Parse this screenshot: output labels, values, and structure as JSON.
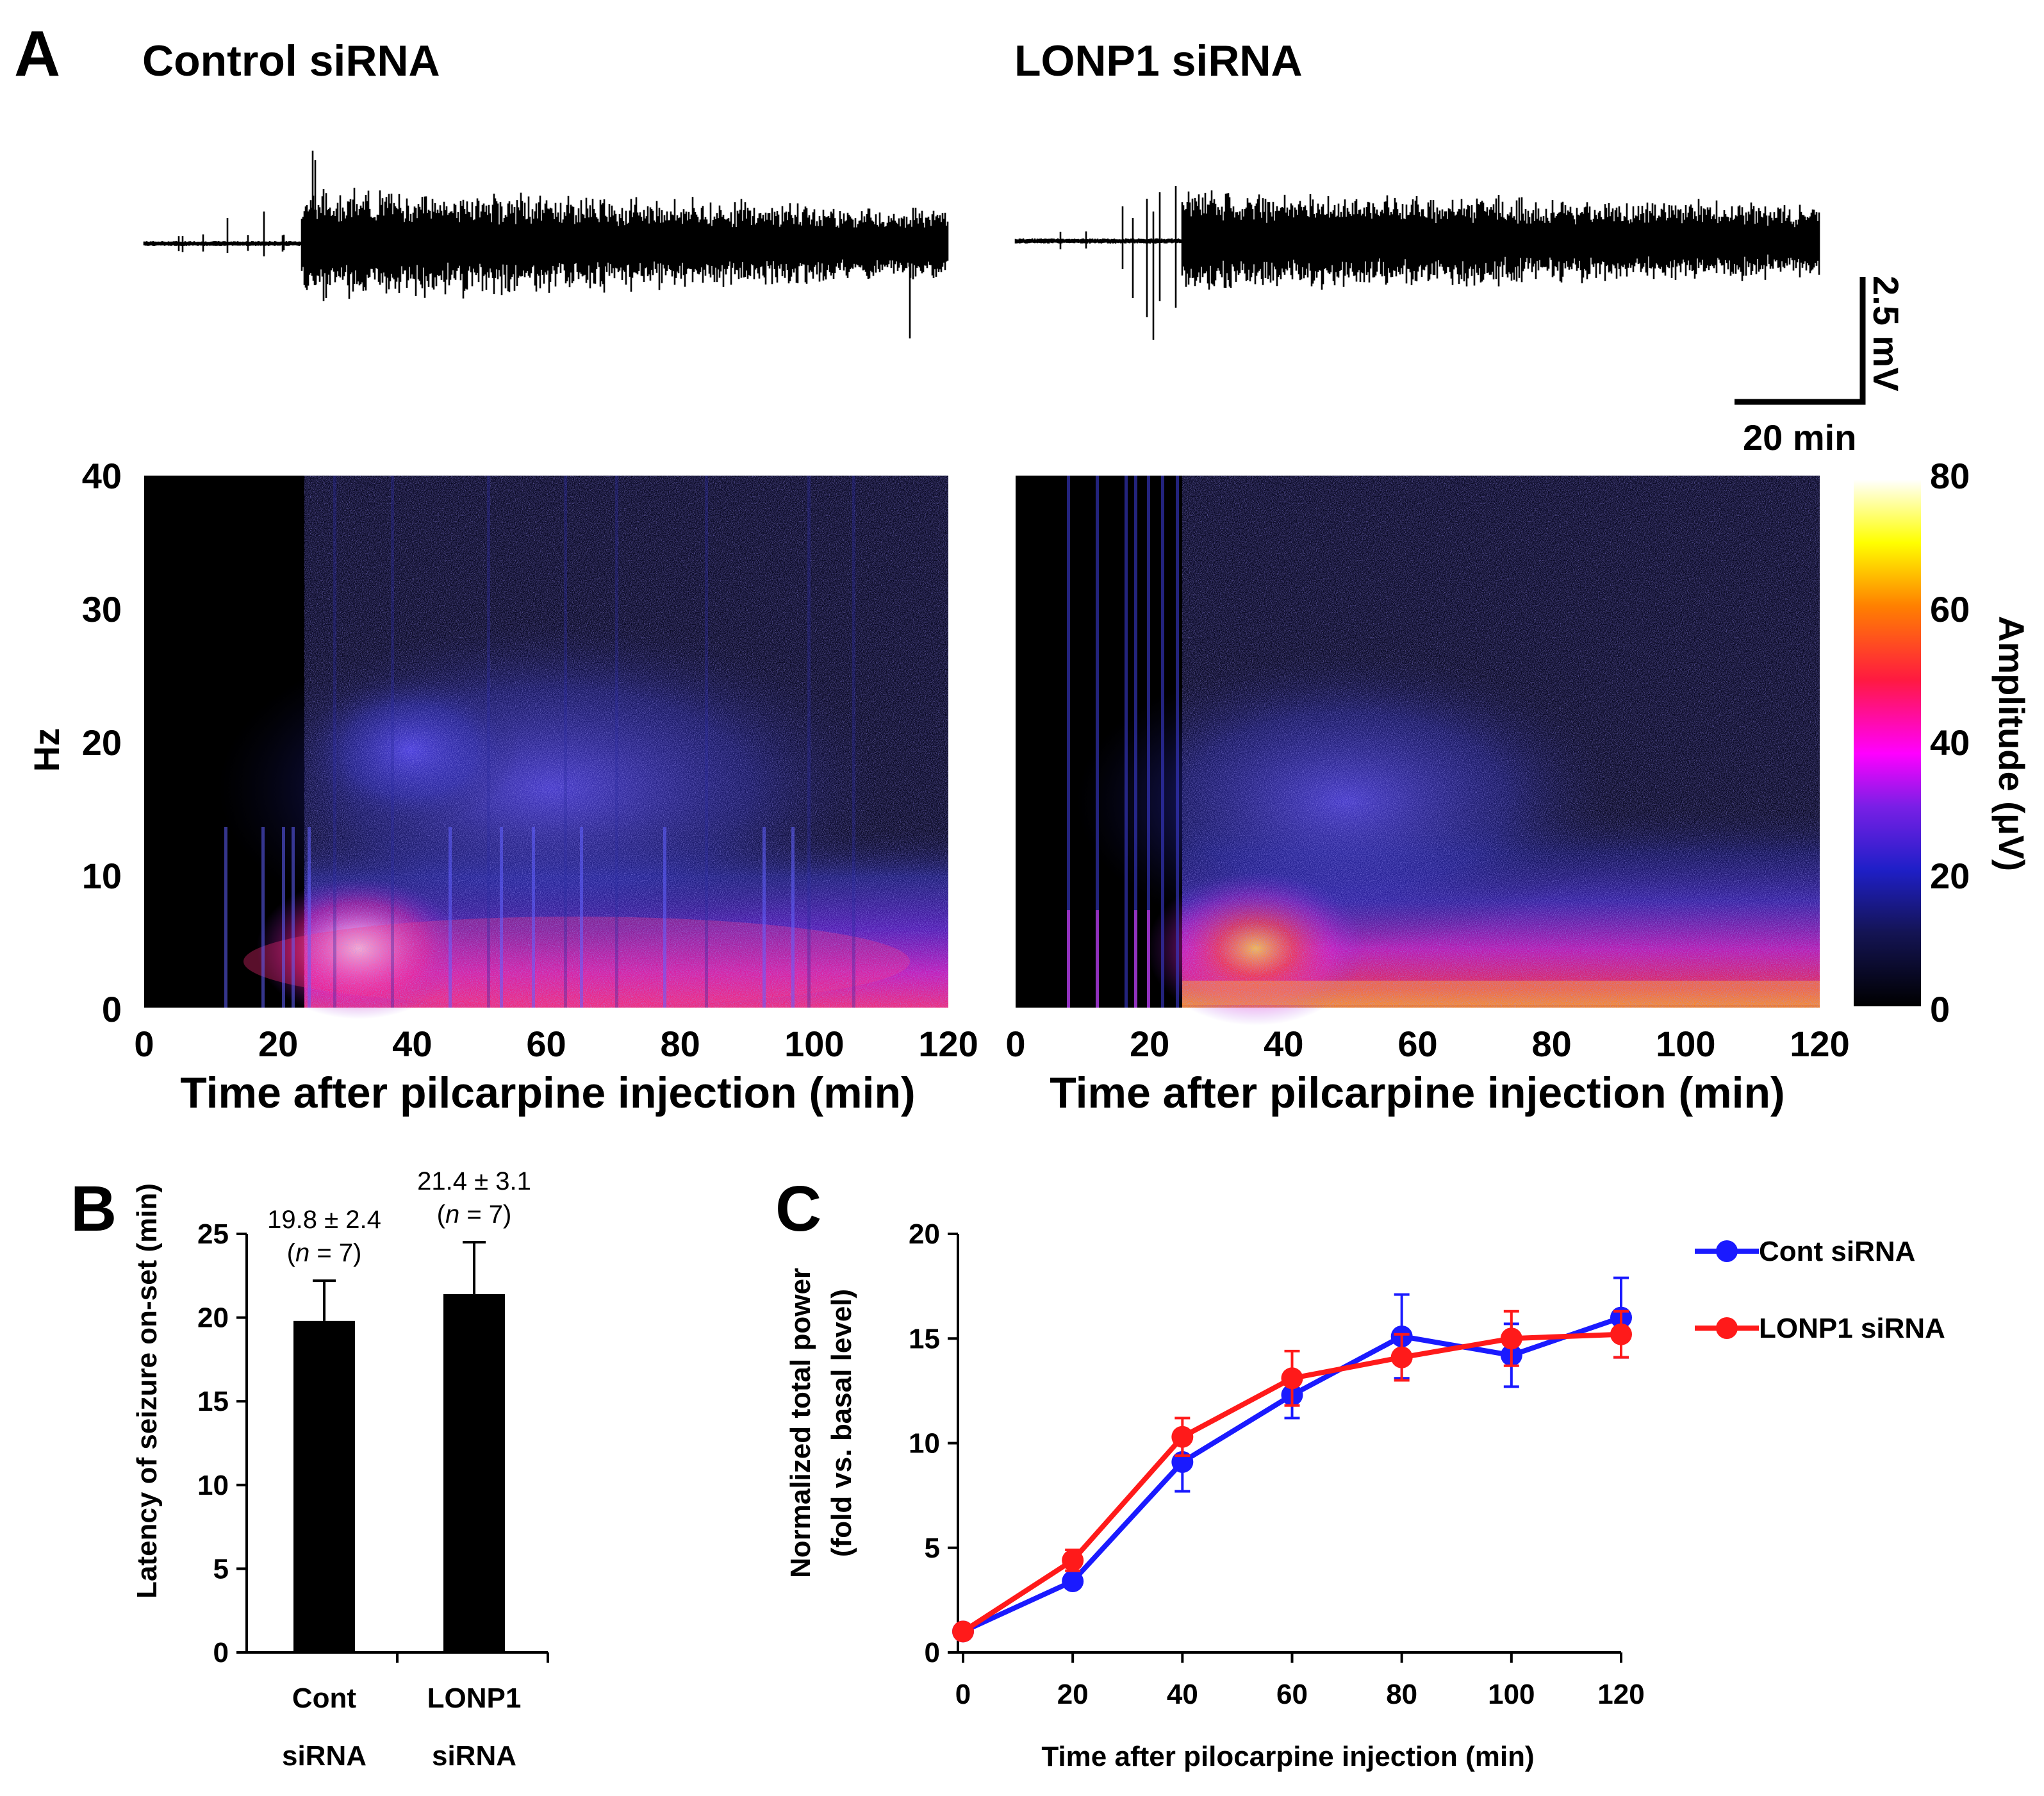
{
  "panel_labels": {
    "a": "A",
    "b": "B",
    "c": "C"
  },
  "panel_a": {
    "conditions": [
      "Control siRNA",
      "LONP1 siRNA"
    ],
    "scale_bar": {
      "voltage": "2.5 mV",
      "time": "20 min"
    },
    "colorbar": {
      "label": "Amplitude (μV)",
      "ticks": [
        "0",
        "20",
        "40",
        "60",
        "80"
      ],
      "min": 0,
      "max": 80
    },
    "y_label": "Hz",
    "y_ticks": [
      "0",
      "10",
      "20",
      "30",
      "40"
    ],
    "x_ticks": [
      "0",
      "20",
      "40",
      "60",
      "80",
      "100",
      "120"
    ],
    "x_label": "Time after pilcarpine injection (min)"
  },
  "chart_data": [
    {
      "type": "spectrogram",
      "title": "Control siRNA",
      "xlabel": "Time after pilcarpine injection (min)",
      "ylabel": "Hz",
      "xlim": [
        0,
        120
      ],
      "ylim": [
        0,
        40
      ],
      "zlabel": "Amplitude (μV)",
      "zlim": [
        0,
        80
      ],
      "seizure_onset_min": 24
    },
    {
      "type": "spectrogram",
      "title": "LONP1 siRNA",
      "xlabel": "Time after pilcarpine injection (min)",
      "ylabel": "Hz",
      "xlim": [
        0,
        120
      ],
      "ylim": [
        0,
        40
      ],
      "zlabel": "Amplitude (μV)",
      "zlim": [
        0,
        80
      ],
      "seizure_onset_min": 25
    },
    {
      "type": "bar",
      "categories": [
        "Cont siRNA",
        "LONP1 siRNA"
      ],
      "category_lines": [
        [
          "Cont",
          "siRNA"
        ],
        [
          "LONP1",
          "siRNA"
        ]
      ],
      "values": [
        19.8,
        21.4
      ],
      "errors": [
        2.4,
        3.1
      ],
      "annotations": [
        {
          "value_text": "19.8 ± 2.4",
          "n_prefix": "(",
          "n_italic": "n",
          "n_suffix": " = 7)"
        },
        {
          "value_text": "21.4 ± 3.1",
          "n_prefix": "(",
          "n_italic": "n",
          "n_suffix": " = 7)"
        }
      ],
      "ylabel": "Latency of seizure on-set (min)",
      "ylim": [
        0,
        25
      ],
      "yticks": [
        0,
        5,
        10,
        15,
        20,
        25
      ],
      "color": "#000000"
    },
    {
      "type": "line",
      "x": [
        0,
        20,
        40,
        60,
        80,
        100,
        120
      ],
      "xticks": [
        0,
        20,
        40,
        60,
        80,
        100,
        120
      ],
      "series": [
        {
          "name": "Cont siRNA",
          "color": "#1a1aff",
          "values": [
            1.0,
            3.4,
            9.1,
            12.3,
            15.1,
            14.2,
            16.0
          ],
          "errors": [
            0.2,
            0.3,
            1.4,
            1.1,
            2.0,
            1.5,
            1.9
          ]
        },
        {
          "name": "LONP1 siRNA",
          "color": "#ff1a1a",
          "values": [
            1.0,
            4.4,
            10.3,
            13.1,
            14.1,
            15.0,
            15.2
          ],
          "errors": [
            0.2,
            0.5,
            0.9,
            1.3,
            1.1,
            1.3,
            1.1
          ]
        }
      ],
      "xlabel": "Time after pilocarpine injection (min)",
      "ylabel_lines": [
        "Normalized total power",
        "(fold vs. basal level)"
      ],
      "ylim": [
        0,
        20
      ],
      "yticks": [
        0,
        5,
        10,
        15,
        20
      ],
      "xlim": [
        0,
        120
      ]
    }
  ]
}
